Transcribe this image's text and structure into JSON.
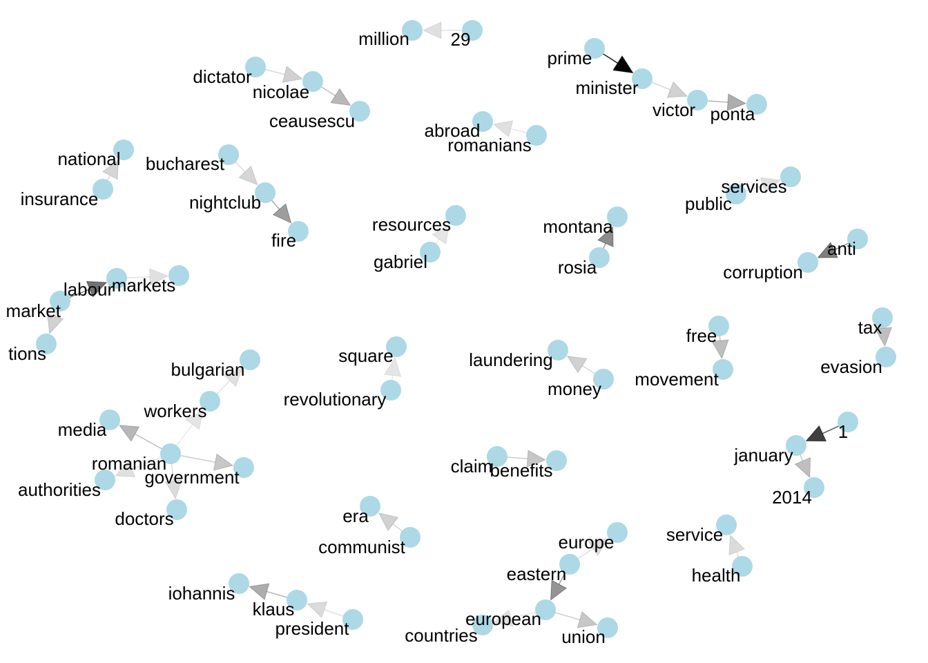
{
  "graph": {
    "node_color": "#ADD8E6",
    "label_color": "#000000",
    "edge_color": "#000000",
    "nodes": [
      {
        "id": "million"
      },
      {
        "id": "29"
      },
      {
        "id": "dictator"
      },
      {
        "id": "nicolae"
      },
      {
        "id": "ceausescu"
      },
      {
        "id": "prime"
      },
      {
        "id": "minister"
      },
      {
        "id": "victor"
      },
      {
        "id": "ponta"
      },
      {
        "id": "abroad"
      },
      {
        "id": "romanians"
      },
      {
        "id": "national"
      },
      {
        "id": "insurance"
      },
      {
        "id": "bucharest"
      },
      {
        "id": "nightclub"
      },
      {
        "id": "fire"
      },
      {
        "id": "services"
      },
      {
        "id": "public"
      },
      {
        "id": "resources"
      },
      {
        "id": "gabriel"
      },
      {
        "id": "montana"
      },
      {
        "id": "rosia"
      },
      {
        "id": "anti"
      },
      {
        "id": "corruption"
      },
      {
        "id": "labour"
      },
      {
        "id": "markets"
      },
      {
        "id": "market"
      },
      {
        "id": "tions"
      },
      {
        "id": "tax"
      },
      {
        "id": "evasion"
      },
      {
        "id": "free"
      },
      {
        "id": "movement"
      },
      {
        "id": "square"
      },
      {
        "id": "revolutionary"
      },
      {
        "id": "laundering"
      },
      {
        "id": "money"
      },
      {
        "id": "bulgarian"
      },
      {
        "id": "workers"
      },
      {
        "id": "media"
      },
      {
        "id": "romanian"
      },
      {
        "id": "government"
      },
      {
        "id": "authorities"
      },
      {
        "id": "doctors"
      },
      {
        "id": "1"
      },
      {
        "id": "january"
      },
      {
        "id": "2014"
      },
      {
        "id": "claim"
      },
      {
        "id": "benefits"
      },
      {
        "id": "era"
      },
      {
        "id": "communist"
      },
      {
        "id": "service"
      },
      {
        "id": "health"
      },
      {
        "id": "europe"
      },
      {
        "id": "eastern"
      },
      {
        "id": "european"
      },
      {
        "id": "countries"
      },
      {
        "id": "union"
      },
      {
        "id": "iohannis"
      },
      {
        "id": "klaus"
      },
      {
        "id": "president"
      }
    ],
    "edges": [
      {
        "from": "29",
        "to": "million",
        "shade": 0.12
      },
      {
        "from": "dictator",
        "to": "nicolae",
        "shade": 0.18
      },
      {
        "from": "nicolae",
        "to": "ceausescu",
        "shade": 0.28
      },
      {
        "from": "prime",
        "to": "minister",
        "shade": 1.0
      },
      {
        "from": "minister",
        "to": "victor",
        "shade": 0.18
      },
      {
        "from": "victor",
        "to": "ponta",
        "shade": 0.32
      },
      {
        "from": "romanians",
        "to": "abroad",
        "shade": 0.12
      },
      {
        "from": "insurance",
        "to": "national",
        "shade": 0.16
      },
      {
        "from": "bucharest",
        "to": "nightclub",
        "shade": 0.16
      },
      {
        "from": "nightclub",
        "to": "fire",
        "shade": 0.38
      },
      {
        "from": "public",
        "to": "services",
        "shade": 0.12
      },
      {
        "from": "gabriel",
        "to": "resources",
        "shade": 0.1
      },
      {
        "from": "rosia",
        "to": "montana",
        "shade": 0.45
      },
      {
        "from": "anti",
        "to": "corruption",
        "shade": 0.5
      },
      {
        "from": "labour",
        "to": "markets",
        "shade": 0.12
      },
      {
        "from": "market",
        "to": "labour",
        "shade": 0.55
      },
      {
        "from": "market",
        "to": "tions",
        "shade": 0.18
      },
      {
        "from": "tax",
        "to": "evasion",
        "shade": 0.25
      },
      {
        "from": "free",
        "to": "movement",
        "shade": 0.25
      },
      {
        "from": "revolutionary",
        "to": "square",
        "shade": 0.1
      },
      {
        "from": "money",
        "to": "laundering",
        "shade": 0.18
      },
      {
        "from": "romanian",
        "to": "workers",
        "shade": 0.1
      },
      {
        "from": "workers",
        "to": "bulgarian",
        "shade": 0.12
      },
      {
        "from": "romanian",
        "to": "media",
        "shade": 0.28
      },
      {
        "from": "romanian",
        "to": "government",
        "shade": 0.22
      },
      {
        "from": "romanian",
        "to": "authorities",
        "shade": 0.12
      },
      {
        "from": "romanian",
        "to": "doctors",
        "shade": 0.14
      },
      {
        "from": "1",
        "to": "january",
        "shade": 0.75
      },
      {
        "from": "january",
        "to": "2014",
        "shade": 0.25
      },
      {
        "from": "claim",
        "to": "benefits",
        "shade": 0.22
      },
      {
        "from": "communist",
        "to": "era",
        "shade": 0.18
      },
      {
        "from": "health",
        "to": "service",
        "shade": 0.14
      },
      {
        "from": "eastern",
        "to": "europe",
        "shade": 0.14
      },
      {
        "from": "eastern",
        "to": "european",
        "shade": 0.42
      },
      {
        "from": "european",
        "to": "union",
        "shade": 0.22
      },
      {
        "from": "european",
        "to": "countries",
        "shade": 0.12
      },
      {
        "from": "klaus",
        "to": "iohannis",
        "shade": 0.32
      },
      {
        "from": "president",
        "to": "klaus",
        "shade": 0.14
      }
    ]
  }
}
